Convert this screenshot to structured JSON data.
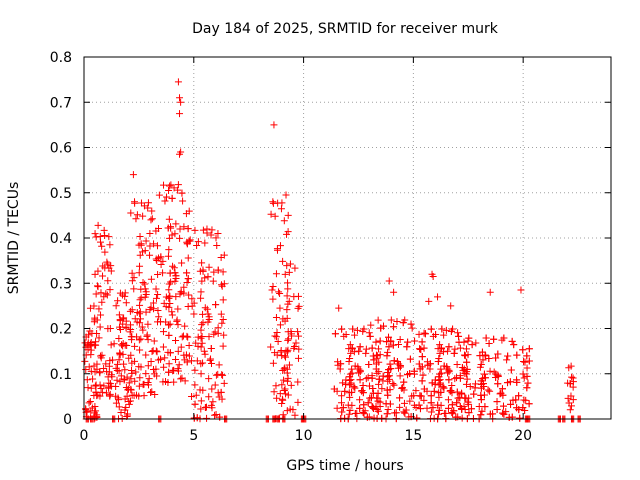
{
  "chart_data": {
    "type": "scatter",
    "title": "Day 184 of 2025, SRMTID for receiver murk",
    "xlabel": "GPS time / hours",
    "ylabel": "SRMTID / TECUs",
    "xlim": [
      0,
      24
    ],
    "ylim": [
      0,
      0.8
    ],
    "xticks": [
      "0",
      "5",
      "10",
      "15",
      "20"
    ],
    "yticks": [
      "0",
      "0.1",
      "0.2",
      "0.3",
      "0.4",
      "0.5",
      "0.6",
      "0.7",
      "0.8"
    ],
    "grid": true,
    "marker_color": "#ff0000",
    "marker": "plus",
    "series": [
      {
        "clusters": [
          {
            "x_range": [
              0.0,
              0.6
            ],
            "y_range": [
              0.0,
              0.25
            ],
            "n": 60
          },
          {
            "x_range": [
              0.5,
              1.3
            ],
            "y_range": [
              0.05,
              0.43
            ],
            "n": 70
          },
          {
            "x_range": [
              1.3,
              2.2
            ],
            "y_range": [
              0.0,
              0.28
            ],
            "n": 80
          },
          {
            "x_range": [
              2.1,
              3.4
            ],
            "y_range": [
              0.05,
              0.48
            ],
            "n": 110
          },
          {
            "x_range": [
              3.4,
              4.8
            ],
            "y_range": [
              0.08,
              0.52
            ],
            "n": 140
          },
          {
            "x_range": [
              4.8,
              6.4
            ],
            "y_range": [
              0.0,
              0.42
            ],
            "n": 120
          },
          {
            "x_range": [
              8.5,
              9.3
            ],
            "y_range": [
              0.0,
              0.48
            ],
            "n": 55
          },
          {
            "x_range": [
              9.0,
              9.8
            ],
            "y_range": [
              0.0,
              0.35
            ],
            "n": 45
          },
          {
            "x_range": [
              11.4,
              13.5
            ],
            "y_range": [
              0.0,
              0.2
            ],
            "n": 160
          },
          {
            "x_range": [
              13.0,
              15.5
            ],
            "y_range": [
              0.0,
              0.22
            ],
            "n": 180
          },
          {
            "x_range": [
              15.5,
              17.5
            ],
            "y_range": [
              0.0,
              0.2
            ],
            "n": 170
          },
          {
            "x_range": [
              17.0,
              20.3
            ],
            "y_range": [
              0.0,
              0.18
            ],
            "n": 200
          },
          {
            "x_range": [
              22.0,
              22.3
            ],
            "y_range": [
              0.02,
              0.12
            ],
            "n": 15
          }
        ],
        "extra_points": [
          [
            4.3,
            0.745
          ],
          [
            4.35,
            0.71
          ],
          [
            4.4,
            0.7
          ],
          [
            4.35,
            0.675
          ],
          [
            4.4,
            0.59
          ],
          [
            4.35,
            0.585
          ],
          [
            3.9,
            0.515
          ],
          [
            3.85,
            0.505
          ],
          [
            2.25,
            0.54
          ],
          [
            8.65,
            0.65
          ],
          [
            9.2,
            0.495
          ],
          [
            9.3,
            0.45
          ],
          [
            8.6,
            0.48
          ],
          [
            2.3,
            0.48
          ],
          [
            15.85,
            0.32
          ],
          [
            15.9,
            0.315
          ],
          [
            13.9,
            0.305
          ],
          [
            19.9,
            0.285
          ],
          [
            14.1,
            0.28
          ],
          [
            18.5,
            0.28
          ],
          [
            16.1,
            0.27
          ],
          [
            15.7,
            0.26
          ],
          [
            11.6,
            0.245
          ],
          [
            16.7,
            0.25
          ],
          [
            1.2,
            0.2
          ],
          [
            3.05,
            0.44
          ],
          [
            3.0,
            0.41
          ],
          [
            5.6,
            0.42
          ],
          [
            6.1,
            0.41
          ]
        ],
        "baseline_points": [
          0.1,
          0.3,
          1.3,
          3.4,
          6.4,
          8.3,
          8.6,
          8.8,
          9.05,
          9.9,
          10.0,
          20.1,
          20.2,
          21.6,
          21.8,
          22.2,
          22.5
        ]
      }
    ]
  }
}
